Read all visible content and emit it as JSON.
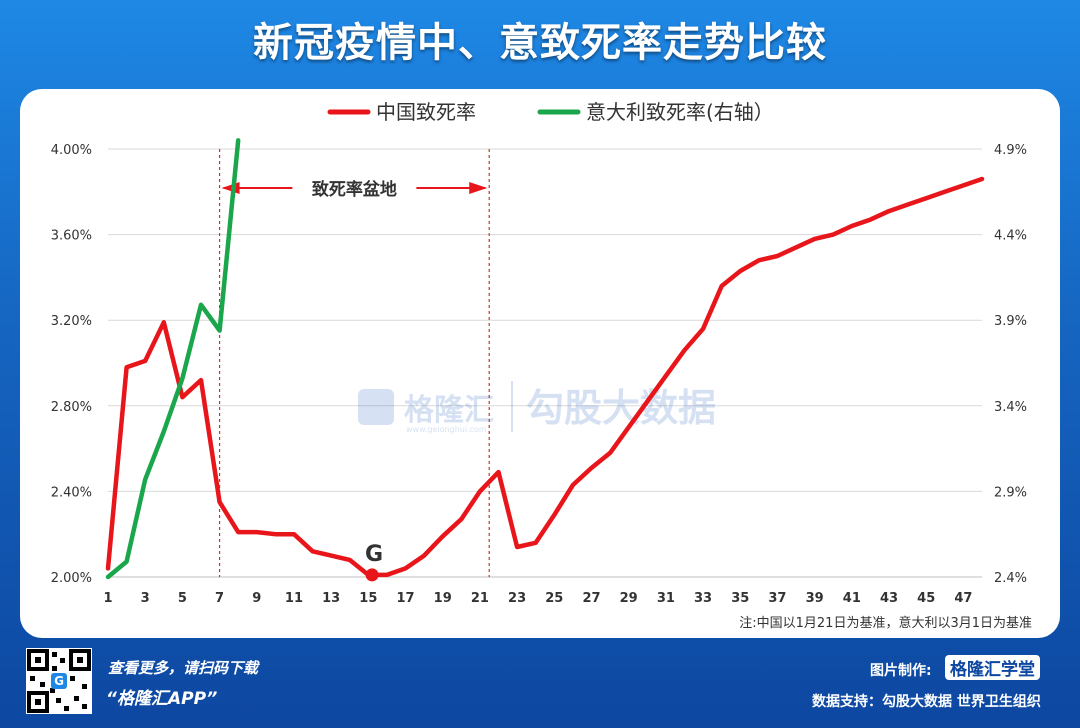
{
  "title": "新冠疫情中、意致死率走势比较",
  "chart_data": {
    "type": "line",
    "legend": [
      "中国致死率",
      "意大利致死率(右轴）"
    ],
    "x_ticks": [
      "1",
      "3",
      "5",
      "7",
      "9",
      "11",
      "13",
      "15",
      "17",
      "19",
      "21",
      "23",
      "25",
      "27",
      "29",
      "31",
      "33",
      "35",
      "37",
      "39",
      "41",
      "43",
      "45",
      "47"
    ],
    "y_left_ticks": [
      "2.00%",
      "2.40%",
      "2.80%",
      "3.20%",
      "3.60%",
      "4.00%"
    ],
    "y_right_ticks": [
      "2.4%",
      "2.9%",
      "3.4%",
      "3.9%",
      "4.4%",
      "4.9%"
    ],
    "y_left_range": [
      2.0,
      4.0
    ],
    "y_right_range": [
      2.4,
      4.9
    ],
    "x_range": [
      1,
      48
    ],
    "series": [
      {
        "name": "中国致死率",
        "axis": "left",
        "color": "#e8161b",
        "x": [
          1,
          2,
          3,
          4,
          5,
          6,
          7,
          8,
          9,
          10,
          11,
          12,
          13,
          14,
          15,
          16,
          17,
          18,
          19,
          20,
          21,
          22,
          23,
          24,
          25,
          26,
          27,
          28,
          29,
          30,
          31,
          32,
          33,
          34,
          35,
          36,
          37,
          38,
          39,
          40,
          41,
          42,
          43,
          44,
          45,
          46,
          47,
          48
        ],
        "y": [
          2.04,
          2.98,
          3.01,
          3.19,
          2.84,
          2.92,
          2.35,
          2.21,
          2.21,
          2.2,
          2.2,
          2.12,
          2.1,
          2.08,
          2.01,
          2.01,
          2.04,
          2.1,
          2.19,
          2.27,
          2.4,
          2.49,
          2.14,
          2.16,
          2.29,
          2.43,
          2.51,
          2.58,
          2.7,
          2.82,
          2.94,
          3.06,
          3.16,
          3.36,
          3.43,
          3.48,
          3.5,
          3.54,
          3.58,
          3.6,
          3.64,
          3.67,
          3.71,
          3.74,
          3.77,
          3.8,
          3.83,
          3.86
        ]
      },
      {
        "name": "意大利致死率(右轴）",
        "axis": "right",
        "color": "#1aa64a",
        "x": [
          1,
          2,
          3,
          4,
          5,
          6,
          7,
          8
        ],
        "y": [
          2.4,
          2.49,
          2.97,
          3.25,
          3.56,
          3.99,
          3.84,
          4.95
        ]
      }
    ],
    "annotations": {
      "basin_label": "致死率盆地",
      "basin_range": [
        7,
        21.5
      ],
      "point_label": "G",
      "point_x": 15.2,
      "point_y": 2.01
    },
    "note": "注:中国以1月21日为基准，意大利以3月1日为基准",
    "grid": true
  },
  "watermark": {
    "brand": "格隆汇",
    "site": "www.gelonghui.com",
    "partner": "勾股大数据"
  },
  "footer": {
    "promo_line1": "查看更多，请扫码下载",
    "promo_line2": "“格隆汇APP”",
    "made_by_label": "图片制作:",
    "made_by_logo": "格隆汇学堂",
    "data_support": "数据支持：勾股大数据  世界卫生组织"
  }
}
